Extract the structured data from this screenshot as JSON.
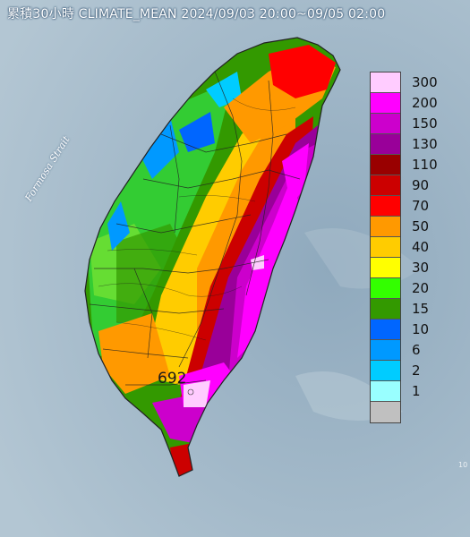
{
  "title": "累積30小時 CLIMATE_MEAN 2024/09/03 20:00~09/05 02:00",
  "sea_label": "Formosa Strait",
  "max_value_label": "692",
  "legend": {
    "levels": [
      {
        "label": "300",
        "color": "#ffccff"
      },
      {
        "label": "200",
        "color": "#ff00ff"
      },
      {
        "label": "150",
        "color": "#cc00cc"
      },
      {
        "label": "130",
        "color": "#990099"
      },
      {
        "label": "110",
        "color": "#990000"
      },
      {
        "label": "90",
        "color": "#cc0000"
      },
      {
        "label": "70",
        "color": "#ff0000"
      },
      {
        "label": "50",
        "color": "#ff9900"
      },
      {
        "label": "40",
        "color": "#ffcc00"
      },
      {
        "label": "30",
        "color": "#ffff00"
      },
      {
        "label": "20",
        "color": "#33ff00"
      },
      {
        "label": "15",
        "color": "#339900"
      },
      {
        "label": "10",
        "color": "#0066ff"
      },
      {
        "label": "6",
        "color": "#0099ff"
      },
      {
        "label": "2",
        "color": "#00ccff"
      },
      {
        "label": "1",
        "color": "#99ffff"
      },
      {
        "label": "",
        "color": "#c0c0c0"
      }
    ]
  },
  "colors": {
    "sea": "#9fb7c8",
    "green": "#33cc33",
    "dark_green": "#339900",
    "orange": "#ff9900",
    "red": "#cc0000",
    "magenta": "#ff00ff",
    "purple": "#cc00cc",
    "pink": "#ffccff",
    "blue": "#0099ff"
  }
}
